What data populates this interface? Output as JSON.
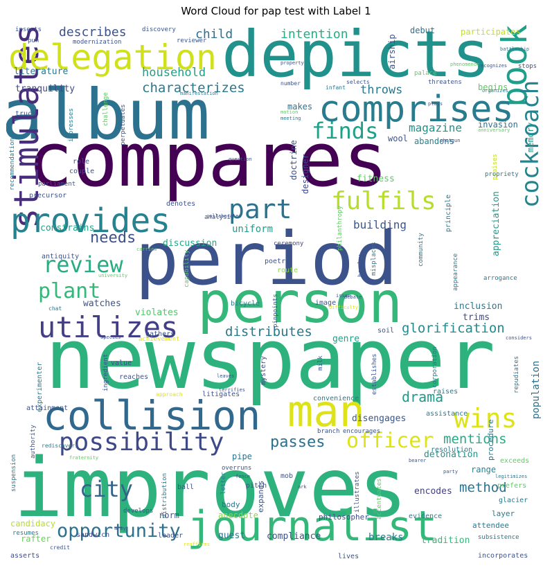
{
  "chart_data": {
    "type": "wordcloud",
    "title": "Word Cloud for pap test with Label 1",
    "words": [
      {
        "text": "newspaper",
        "weight": 100,
        "color": "#2db27d"
      },
      {
        "text": "improves",
        "weight": 100,
        "color": "#2db27d"
      },
      {
        "text": "compares",
        "weight": 95,
        "color": "#440154"
      },
      {
        "text": "album",
        "weight": 92,
        "color": "#2c728e"
      },
      {
        "text": "period",
        "weight": 90,
        "color": "#3b528b"
      },
      {
        "text": "person",
        "weight": 82,
        "color": "#35b779"
      },
      {
        "text": "depicts",
        "weight": 80,
        "color": "#21918c"
      },
      {
        "text": "book",
        "weight": 78,
        "color": "#1f9e89"
      },
      {
        "text": "journalist",
        "weight": 62,
        "color": "#35b779"
      },
      {
        "text": "collision",
        "weight": 55,
        "color": "#31688e"
      },
      {
        "text": "man",
        "weight": 55,
        "color": "#dde318"
      },
      {
        "text": "stimulates",
        "weight": 52,
        "color": "#472d7b"
      },
      {
        "text": "comprises",
        "weight": 48,
        "color": "#287c8e"
      },
      {
        "text": "delegation",
        "weight": 48,
        "color": "#d0e11c"
      },
      {
        "text": "provides",
        "weight": 45,
        "color": "#26828e"
      },
      {
        "text": "utilizes",
        "weight": 40,
        "color": "#433e85"
      },
      {
        "text": "possibility",
        "weight": 36,
        "color": "#3e4989"
      },
      {
        "text": "part",
        "weight": 35,
        "color": "#2c728e"
      },
      {
        "text": "cockroach",
        "weight": 34,
        "color": "#25838e"
      },
      {
        "text": "wins",
        "weight": 34,
        "color": "#dde318"
      },
      {
        "text": "fulfils",
        "weight": 34,
        "color": "#b5de2b"
      },
      {
        "text": "finds",
        "weight": 32,
        "color": "#1fa088"
      },
      {
        "text": "review",
        "weight": 30,
        "color": "#27ad81"
      },
      {
        "text": "plant",
        "weight": 30,
        "color": "#35b779"
      },
      {
        "text": "city",
        "weight": 30,
        "color": "#33638d"
      },
      {
        "text": "officer",
        "weight": 28,
        "color": "#dde318"
      },
      {
        "text": "opportunity",
        "weight": 26,
        "color": "#2c728e"
      },
      {
        "text": "passes",
        "weight": 20,
        "color": "#2d708e"
      },
      {
        "text": "drama",
        "weight": 18,
        "color": "#1f9a8a"
      },
      {
        "text": "mentions",
        "weight": 18,
        "color": "#25ab82"
      },
      {
        "text": "characterizes",
        "weight": 18,
        "color": "#2a788e"
      },
      {
        "text": "needs",
        "weight": 20,
        "color": "#3b528b"
      },
      {
        "text": "distributes",
        "weight": 18,
        "color": "#2a788e"
      },
      {
        "text": "glorification",
        "weight": 18,
        "color": "#238a8d"
      },
      {
        "text": "method",
        "weight": 18,
        "color": "#2c728e"
      },
      {
        "text": "household",
        "weight": 16,
        "color": "#1fa187"
      },
      {
        "text": "child",
        "weight": 16,
        "color": "#2c728e"
      },
      {
        "text": "intention",
        "weight": 16,
        "color": "#27ad81"
      },
      {
        "text": "describes",
        "weight": 16,
        "color": "#3b528b"
      },
      {
        "text": "magazine",
        "weight": 15,
        "color": "#21918c"
      },
      {
        "text": "building",
        "weight": 15,
        "color": "#39568c"
      },
      {
        "text": "throws",
        "weight": 15,
        "color": "#2a788e"
      },
      {
        "text": "breaks",
        "weight": 14,
        "color": "#2a788e"
      },
      {
        "text": "population",
        "weight": 13,
        "color": "#2c728e"
      },
      {
        "text": "uniform",
        "weight": 13,
        "color": "#1f9e89"
      },
      {
        "text": "fitness",
        "weight": 13,
        "color": "#5ec962"
      },
      {
        "text": "literature",
        "weight": 12,
        "color": "#2a788e"
      },
      {
        "text": "tranquility",
        "weight": 12,
        "color": "#3e4989"
      },
      {
        "text": "discussion",
        "weight": 12,
        "color": "#22a785"
      },
      {
        "text": "constrains",
        "weight": 12,
        "color": "#20a386"
      },
      {
        "text": "watches",
        "weight": 12,
        "color": "#3b528b"
      },
      {
        "text": "violates",
        "weight": 12,
        "color": "#52c569"
      },
      {
        "text": "trims",
        "weight": 12,
        "color": "#3e4989"
      },
      {
        "text": "inclusion",
        "weight": 12,
        "color": "#2a788e"
      },
      {
        "text": "genre",
        "weight": 12,
        "color": "#1fa187"
      },
      {
        "text": "appreciation",
        "weight": 12,
        "color": "#1f9a8a"
      },
      {
        "text": "encodes",
        "weight": 12,
        "color": "#424086"
      },
      {
        "text": "detonation",
        "weight": 12,
        "color": "#21918c"
      },
      {
        "text": "disengages",
        "weight": 12,
        "color": "#39568c"
      },
      {
        "text": "compliance",
        "weight": 12,
        "color": "#3b528b"
      },
      {
        "text": "tradition",
        "weight": 12,
        "color": "#35b779"
      },
      {
        "text": "guest",
        "weight": 12,
        "color": "#2c728e"
      },
      {
        "text": "anecdote",
        "weight": 12,
        "color": "#8bd646"
      },
      {
        "text": "candidacy",
        "weight": 12,
        "color": "#b5de2b"
      },
      {
        "text": "rafter",
        "weight": 12,
        "color": "#6ccd5a"
      },
      {
        "text": "pipe",
        "weight": 12,
        "color": "#2c728e"
      },
      {
        "text": "begins",
        "weight": 12,
        "color": "#5ec962"
      },
      {
        "text": "participates",
        "weight": 12,
        "color": "#c2df23"
      },
      {
        "text": "invasion",
        "weight": 11,
        "color": "#2c728e"
      },
      {
        "text": "debut",
        "weight": 12,
        "color": "#2c728e"
      },
      {
        "text": "airship",
        "weight": 12,
        "color": "#3b528b"
      },
      {
        "text": "memory",
        "weight": 11,
        "color": "#1f9a8a"
      },
      {
        "text": "makes",
        "weight": 11,
        "color": "#2c728e"
      },
      {
        "text": "doctrine",
        "weight": 11,
        "color": "#3b528b"
      },
      {
        "text": "abandons",
        "weight": 11,
        "color": "#26828e"
      },
      {
        "text": "wool",
        "weight": 11,
        "color": "#3b528b"
      },
      {
        "text": "designer",
        "weight": 11,
        "color": "#3e4989"
      },
      {
        "text": "range",
        "weight": 11,
        "color": "#26828e"
      },
      {
        "text": "attendee",
        "weight": 11,
        "color": "#2a788e"
      },
      {
        "text": "norm",
        "weight": 11,
        "color": "#3b528b"
      },
      {
        "text": "body",
        "weight": 11,
        "color": "#2c728e"
      },
      {
        "text": "expands",
        "weight": 11,
        "color": "#3b528b"
      },
      {
        "text": "philosopher",
        "weight": 11,
        "color": "#3e4989"
      },
      {
        "text": "procedure",
        "weight": 11,
        "color": "#2c728e"
      },
      {
        "text": "layer",
        "weight": 11,
        "color": "#2a788e"
      },
      {
        "text": "leader",
        "weight": 10,
        "color": "#3b528b"
      },
      {
        "text": "sandwich",
        "weight": 10,
        "color": "#3e4989"
      },
      {
        "text": "lives",
        "weight": 10,
        "color": "#3b528b"
      },
      {
        "text": "mob",
        "weight": 10,
        "color": "#3b528b"
      },
      {
        "text": "pitch",
        "weight": 10,
        "color": "#3b528b"
      },
      {
        "text": "ball",
        "weight": 10,
        "color": "#3b528b"
      },
      {
        "text": "resumes",
        "weight": 10,
        "color": "#2a788e"
      },
      {
        "text": "asserts",
        "weight": 10,
        "color": "#3e4989"
      },
      {
        "text": "incorporates",
        "weight": 10,
        "color": "#3b528b"
      },
      {
        "text": "subsistence",
        "weight": 10,
        "color": "#2c728e"
      },
      {
        "text": "evidence",
        "weight": 10,
        "color": "#2a788e"
      },
      {
        "text": "glacier",
        "weight": 10,
        "color": "#2a788e"
      },
      {
        "text": "prefers",
        "weight": 10,
        "color": "#5ec962"
      },
      {
        "text": "exceeds",
        "weight": 10,
        "color": "#5ec962"
      },
      {
        "text": "raises",
        "weight": 10,
        "color": "#2a788e"
      },
      {
        "text": "assistance",
        "weight": 10,
        "color": "#2a788e"
      },
      {
        "text": "convenience",
        "weight": 10,
        "color": "#2a788e"
      },
      {
        "text": "resolution",
        "weight": 10,
        "color": "#2a788e"
      },
      {
        "text": "reaches",
        "weight": 10,
        "color": "#3b528b"
      },
      {
        "text": "litigates",
        "weight": 10,
        "color": "#3b528b"
      },
      {
        "text": "value",
        "weight": 10,
        "color": "#3b528b"
      },
      {
        "text": "attainment",
        "weight": 10,
        "color": "#3b528b"
      },
      {
        "text": "experimenter",
        "weight": 10,
        "color": "#2a788e"
      },
      {
        "text": "mystery",
        "weight": 10,
        "color": "#3e4989"
      },
      {
        "text": "soil",
        "weight": 10,
        "color": "#3b528b"
      },
      {
        "text": "poetry",
        "weight": 10,
        "color": "#3b528b"
      },
      {
        "text": "route",
        "weight": 10,
        "color": "#8bd646"
      },
      {
        "text": "bicycle",
        "weight": 10,
        "color": "#2a788e"
      },
      {
        "text": "ceremony",
        "weight": 9,
        "color": "#3e4989"
      },
      {
        "text": "gathers",
        "weight": 10,
        "color": "#3b528b"
      },
      {
        "text": "image",
        "weight": 10,
        "color": "#3b528b"
      },
      {
        "text": "achievement",
        "weight": 9,
        "color": "#dde318"
      },
      {
        "text": "antiquity",
        "weight": 10,
        "color": "#3b528b"
      },
      {
        "text": "analysis",
        "weight": 9,
        "color": "#3b528b"
      },
      {
        "text": "denotes",
        "weight": 10,
        "color": "#3b528b"
      },
      {
        "text": "precursor",
        "weight": 10,
        "color": "#3b528b"
      },
      {
        "text": "couple",
        "weight": 10,
        "color": "#3b528b"
      },
      {
        "text": "role",
        "weight": 10,
        "color": "#3b528b"
      },
      {
        "text": "parliament",
        "weight": 9,
        "color": "#3b528b"
      },
      {
        "text": "recommendation",
        "weight": 9,
        "color": "#2a788e"
      },
      {
        "text": "truck",
        "weight": 10,
        "color": "#3b528b"
      },
      {
        "text": "impresses",
        "weight": 9,
        "color": "#2a788e"
      },
      {
        "text": "challenge",
        "weight": 9,
        "color": "#5ec962"
      },
      {
        "text": "perpetuates",
        "weight": 9,
        "color": "#3b528b"
      },
      {
        "text": "philanthropy",
        "weight": 9,
        "color": "#5ec962"
      },
      {
        "text": "principle",
        "weight": 10,
        "color": "#2a788e"
      },
      {
        "text": "praises",
        "weight": 9,
        "color": "#c2df23"
      },
      {
        "text": "propriety",
        "weight": 9,
        "color": "#2a788e"
      },
      {
        "text": "heyday",
        "weight": 9,
        "color": "#3b528b"
      },
      {
        "text": "misplaces",
        "weight": 9,
        "color": "#2a788e"
      },
      {
        "text": "community",
        "weight": 9,
        "color": "#2a788e"
      },
      {
        "text": "capability",
        "weight": 9,
        "color": "#5ec962"
      },
      {
        "text": "pinpoints",
        "weight": 9,
        "color": "#3b528b"
      },
      {
        "text": "establishes",
        "weight": 9,
        "color": "#3b528b"
      },
      {
        "text": "corporation",
        "weight": 9,
        "color": "#2a788e"
      },
      {
        "text": "repudiates",
        "weight": 9,
        "color": "#2a788e"
      },
      {
        "text": "accentuates",
        "weight": 9,
        "color": "#5ec962"
      },
      {
        "text": "illustrates",
        "weight": 9,
        "color": "#3b528b"
      },
      {
        "text": "letter",
        "weight": 9,
        "color": "#2a788e"
      },
      {
        "text": "develops",
        "weight": 9,
        "color": "#3b528b"
      },
      {
        "text": "distribution",
        "weight": 9,
        "color": "#2a788e"
      },
      {
        "text": "authority",
        "weight": 9,
        "color": "#3b528b"
      },
      {
        "text": "suspension",
        "weight": 9,
        "color": "#2a788e"
      },
      {
        "text": "ingredient",
        "weight": 9,
        "color": "#3b528b"
      },
      {
        "text": "milk",
        "weight": 9,
        "color": "#3b528b"
      },
      {
        "text": "arrogance",
        "weight": 9,
        "color": "#2a788e"
      },
      {
        "text": "appearance",
        "weight": 9,
        "color": "#2a788e"
      },
      {
        "text": "inserts",
        "weight": 9,
        "color": "#3b528b"
      },
      {
        "text": "pun",
        "weight": 9,
        "color": "#3b528b"
      },
      {
        "text": "modernization",
        "weight": 9,
        "color": "#3b528b"
      },
      {
        "text": "discovery",
        "weight": 9,
        "color": "#3b528b"
      },
      {
        "text": "reviewer",
        "weight": 9,
        "color": "#3b528b"
      },
      {
        "text": "palace",
        "weight": 9,
        "color": "#5ec962"
      },
      {
        "text": "threatens",
        "weight": 9,
        "color": "#3b528b"
      },
      {
        "text": "stops",
        "weight": 9,
        "color": "#3b528b"
      },
      {
        "text": "number",
        "weight": 8,
        "color": "#3b528b"
      },
      {
        "text": "infant",
        "weight": 8,
        "color": "#2a788e"
      },
      {
        "text": "selects",
        "weight": 8,
        "color": "#3b528b"
      },
      {
        "text": "recognizes",
        "weight": 7,
        "color": "#3b528b"
      },
      {
        "text": "phenomenon",
        "weight": 7,
        "color": "#5ec962"
      },
      {
        "text": "property",
        "weight": 7,
        "color": "#3b528b"
      },
      {
        "text": "battleship",
        "weight": 7,
        "color": "#2a788e"
      },
      {
        "text": "organizes",
        "weight": 7,
        "color": "#2a788e"
      },
      {
        "text": "plays",
        "weight": 7,
        "color": "#3b528b"
      },
      {
        "text": "manifestation",
        "weight": 7,
        "color": "#2a788e"
      },
      {
        "text": "motion",
        "weight": 7,
        "color": "#5ec962"
      },
      {
        "text": "meeting",
        "weight": 7,
        "color": "#2a788e"
      },
      {
        "text": "anniversary",
        "weight": 7,
        "color": "#5ec962"
      },
      {
        "text": "shotgun",
        "weight": 7,
        "color": "#3b528b"
      },
      {
        "text": "question",
        "weight": 7,
        "color": "#3b528b"
      },
      {
        "text": "collaborates",
        "weight": 7,
        "color": "#3b528b"
      },
      {
        "text": "carries",
        "weight": 7,
        "color": "#5ec962"
      },
      {
        "text": "university",
        "weight": 7,
        "color": "#5ec962"
      },
      {
        "text": "chat",
        "weight": 8,
        "color": "#2a788e"
      },
      {
        "text": "issue",
        "weight": 7,
        "color": "#3b528b"
      },
      {
        "text": "debate",
        "weight": 7,
        "color": "#3b528b"
      },
      {
        "text": "difficulty",
        "weight": 7,
        "color": "#dde318"
      },
      {
        "text": "species",
        "weight": 7,
        "color": "#3b528b"
      },
      {
        "text": "considers",
        "weight": 7,
        "color": "#3b528b"
      },
      {
        "text": "approach",
        "weight": 8,
        "color": "#dde318"
      },
      {
        "text": "leaves",
        "weight": 7,
        "color": "#3b528b"
      },
      {
        "text": "terrifies",
        "weight": 7,
        "color": "#3b528b"
      },
      {
        "text": "rediscovers",
        "weight": 8,
        "color": "#2a788e"
      },
      {
        "text": "branch",
        "weight": 9,
        "color": "#3b528b"
      },
      {
        "text": "encourages",
        "weight": 9,
        "color": "#3b528b"
      },
      {
        "text": "fraternity",
        "weight": 7,
        "color": "#5ec962"
      },
      {
        "text": "overruns",
        "weight": 9,
        "color": "#3b528b"
      },
      {
        "text": "fence",
        "weight": 7,
        "color": "#3b528b"
      },
      {
        "text": "ark",
        "weight": 7,
        "color": "#3b528b"
      },
      {
        "text": "bearer",
        "weight": 7,
        "color": "#3b528b"
      },
      {
        "text": "party",
        "weight": 7,
        "color": "#3b528b"
      },
      {
        "text": "legitimizes",
        "weight": 7,
        "color": "#2a788e"
      },
      {
        "text": "army",
        "weight": 7,
        "color": "#3b528b"
      },
      {
        "text": "reaffirms",
        "weight": 7,
        "color": "#dde318"
      },
      {
        "text": "credit",
        "weight": 8,
        "color": "#3b528b"
      }
    ]
  }
}
